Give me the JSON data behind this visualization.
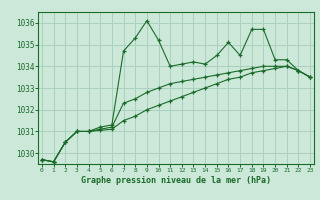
{
  "title": "Graphe pression niveau de la mer (hPa)",
  "background_color": "#cce8d8",
  "grid_color": "#aad0c0",
  "line_color": "#1a6b2a",
  "x_min": 0,
  "x_max": 23,
  "y_min": 1029.5,
  "y_max": 1036.5,
  "y_ticks": [
    1030,
    1031,
    1032,
    1033,
    1034,
    1035,
    1036
  ],
  "series1": [
    [
      0,
      1029.7
    ],
    [
      1,
      1029.6
    ],
    [
      2,
      1030.5
    ],
    [
      3,
      1031.0
    ],
    [
      4,
      1031.0
    ],
    [
      5,
      1031.2
    ],
    [
      6,
      1031.3
    ],
    [
      7,
      1034.7
    ],
    [
      8,
      1035.3
    ],
    [
      9,
      1036.1
    ],
    [
      10,
      1035.2
    ],
    [
      11,
      1034.0
    ],
    [
      12,
      1034.1
    ],
    [
      13,
      1034.2
    ],
    [
      14,
      1034.1
    ],
    [
      15,
      1034.5
    ],
    [
      16,
      1035.1
    ],
    [
      17,
      1034.5
    ],
    [
      18,
      1035.7
    ],
    [
      19,
      1035.7
    ],
    [
      20,
      1034.3
    ],
    [
      21,
      1034.3
    ],
    [
      22,
      1033.8
    ],
    [
      23,
      1033.5
    ]
  ],
  "series2": [
    [
      0,
      1029.7
    ],
    [
      1,
      1029.6
    ],
    [
      2,
      1030.5
    ],
    [
      3,
      1031.0
    ],
    [
      4,
      1031.0
    ],
    [
      5,
      1031.1
    ],
    [
      6,
      1031.2
    ],
    [
      7,
      1032.3
    ],
    [
      8,
      1032.5
    ],
    [
      9,
      1032.8
    ],
    [
      10,
      1033.0
    ],
    [
      11,
      1033.2
    ],
    [
      12,
      1033.3
    ],
    [
      13,
      1033.4
    ],
    [
      14,
      1033.5
    ],
    [
      15,
      1033.6
    ],
    [
      16,
      1033.7
    ],
    [
      17,
      1033.8
    ],
    [
      18,
      1033.9
    ],
    [
      19,
      1034.0
    ],
    [
      20,
      1034.0
    ],
    [
      21,
      1034.0
    ],
    [
      22,
      1033.8
    ],
    [
      23,
      1033.5
    ]
  ],
  "series3": [
    [
      0,
      1029.7
    ],
    [
      1,
      1029.6
    ],
    [
      2,
      1030.5
    ],
    [
      3,
      1031.0
    ],
    [
      4,
      1031.0
    ],
    [
      5,
      1031.05
    ],
    [
      6,
      1031.1
    ],
    [
      7,
      1031.5
    ],
    [
      8,
      1031.7
    ],
    [
      9,
      1032.0
    ],
    [
      10,
      1032.2
    ],
    [
      11,
      1032.4
    ],
    [
      12,
      1032.6
    ],
    [
      13,
      1032.8
    ],
    [
      14,
      1033.0
    ],
    [
      15,
      1033.2
    ],
    [
      16,
      1033.4
    ],
    [
      17,
      1033.5
    ],
    [
      18,
      1033.7
    ],
    [
      19,
      1033.8
    ],
    [
      20,
      1033.9
    ],
    [
      21,
      1034.0
    ],
    [
      22,
      1033.8
    ],
    [
      23,
      1033.5
    ]
  ]
}
